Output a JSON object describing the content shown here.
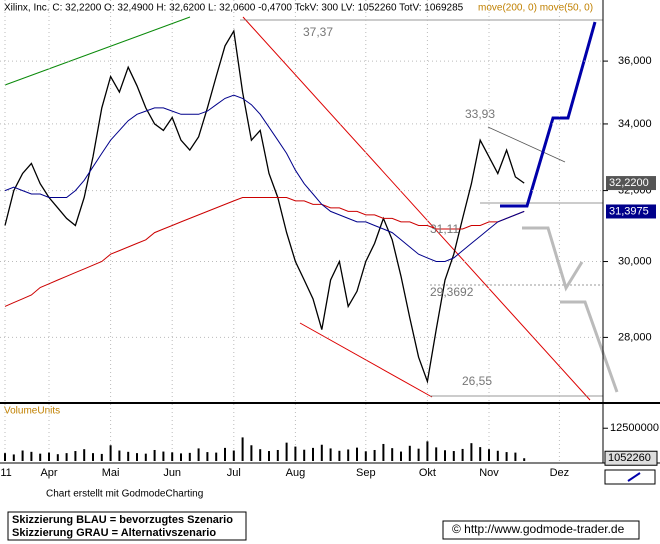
{
  "chart_data": [
    {
      "type": "line",
      "title": "Xilinx, Inc. C: 32,2200 O: 32,4900 H: 32,6200 L: 32,0600 -0,4700 TckV: 300 LV: 1052260 TotV: 1069285",
      "legend_text": "move(200, 0)  move(50, 0)",
      "log_scale": true,
      "grid": true,
      "ylim": [
        26.45,
        37.85
      ],
      "yticks": [
        {
          "value": 28,
          "label": "28,000"
        },
        {
          "value": 30,
          "label": "30,000"
        },
        {
          "value": 32,
          "label": "32,000"
        },
        {
          "value": 34,
          "label": "34,000"
        },
        {
          "value": 36,
          "label": "36,000"
        }
      ],
      "series": [
        {
          "name": "Xilinx",
          "color": "#000000",
          "values": [
            31.0,
            32.0,
            32.5,
            32.8,
            32.2,
            31.8,
            31.5,
            31.2,
            31.0,
            31.8,
            33.0,
            34.5,
            35.5,
            35.0,
            35.8,
            35.2,
            34.5,
            34.0,
            33.8,
            34.2,
            33.5,
            33.2,
            33.6,
            34.5,
            35.5,
            36.5,
            37.0,
            35.0,
            33.5,
            33.8,
            32.5,
            31.8,
            30.8,
            30.0,
            29.5,
            29.0,
            28.2,
            29.5,
            30.0,
            28.8,
            29.2,
            30.0,
            30.5,
            31.2,
            30.6,
            29.6,
            28.5,
            27.5,
            26.9,
            28.2,
            29.5,
            30.2,
            31.2,
            32.2,
            33.5,
            33.0,
            32.5,
            33.2,
            32.4,
            32.22,
            null,
            null,
            null,
            null,
            null,
            null,
            null,
            null
          ]
        },
        {
          "name": "move(200, 0)",
          "color": "#cc0000",
          "values": [
            28.8,
            28.9,
            29.0,
            29.1,
            29.3,
            29.4,
            29.5,
            29.6,
            29.7,
            29.8,
            29.9,
            30.0,
            30.2,
            30.3,
            30.4,
            30.5,
            30.6,
            30.8,
            30.9,
            31.0,
            31.1,
            31.2,
            31.3,
            31.4,
            31.5,
            31.6,
            31.7,
            31.8,
            31.8,
            31.8,
            31.8,
            31.8,
            31.8,
            31.7,
            31.7,
            31.6,
            31.6,
            31.5,
            31.5,
            31.4,
            31.4,
            31.3,
            31.3,
            31.2,
            31.2,
            31.1,
            31.1,
            31.0,
            31.0,
            30.9,
            30.9,
            30.9,
            30.9,
            31.0,
            31.0,
            31.1,
            31.1,
            31.2,
            31.3,
            31.4,
            null,
            null,
            null,
            null,
            null,
            null,
            null,
            null
          ]
        },
        {
          "name": "move(50, 0)",
          "color": "#00008b",
          "values": [
            32.0,
            32.1,
            32.0,
            31.9,
            31.9,
            31.8,
            31.8,
            31.8,
            32.0,
            32.3,
            32.7,
            33.1,
            33.5,
            33.8,
            34.1,
            34.3,
            34.4,
            34.5,
            34.5,
            34.4,
            34.3,
            34.3,
            34.3,
            34.4,
            34.6,
            34.8,
            34.9,
            34.8,
            34.6,
            34.3,
            33.9,
            33.5,
            33.1,
            32.6,
            32.2,
            31.9,
            31.6,
            31.4,
            31.3,
            31.2,
            31.1,
            31.1,
            31.0,
            30.9,
            30.8,
            30.6,
            30.4,
            30.2,
            30.1,
            30.0,
            30.0,
            30.1,
            30.3,
            30.5,
            30.7,
            30.9,
            31.1,
            31.2,
            31.3,
            31.4,
            null,
            null,
            null,
            null,
            null,
            null,
            null,
            null
          ]
        }
      ],
      "last_labels": [
        {
          "value": 32.22,
          "label": "32,2200"
        },
        {
          "value": 31.3975,
          "label": "31,3975"
        }
      ],
      "annotations": [
        "37,37",
        "33,93",
        "31,11",
        "29,3692",
        "26,55"
      ]
    },
    {
      "type": "bar",
      "title": "VolumeUnits",
      "color": "#000000",
      "categories": [
        "'11",
        null,
        null,
        null,
        null,
        "Apr",
        null,
        null,
        null,
        null,
        null,
        null,
        "Mai",
        null,
        null,
        null,
        null,
        null,
        null,
        "Jun",
        null,
        null,
        null,
        null,
        null,
        null,
        "Jul",
        null,
        null,
        null,
        null,
        null,
        null,
        "Aug",
        null,
        null,
        null,
        null,
        null,
        null,
        null,
        "Sep",
        null,
        null,
        null,
        null,
        null,
        null,
        "Okt",
        null,
        null,
        null,
        null,
        null,
        null,
        "Nov",
        null,
        null,
        null,
        null,
        null,
        null,
        null,
        "Dez",
        null,
        null,
        null,
        null
      ],
      "values": [
        3000000,
        2500000,
        4000000,
        3500000,
        2800000,
        3200000,
        2600000,
        3000000,
        3800000,
        4500000,
        3000000,
        2700000,
        6000000,
        4000000,
        3500000,
        3000000,
        2800000,
        4200000,
        3600000,
        3300000,
        2900000,
        3100000,
        4800000,
        3400000,
        3200000,
        5000000,
        4000000,
        9000000,
        6000000,
        4500000,
        3800000,
        4200000,
        7000000,
        5500000,
        4300000,
        5000000,
        6200000,
        4800000,
        3900000,
        4400000,
        5100000,
        3700000,
        4200000,
        6500000,
        4900000,
        3600000,
        5800000,
        4700000,
        7500000,
        5200000,
        4100000,
        3800000,
        4600000,
        6800000,
        5300000,
        4500000,
        3900000,
        3400000,
        3200000,
        1052260,
        null,
        null,
        null,
        null,
        null,
        null,
        null,
        null
      ],
      "ylim": [
        0,
        16400000
      ],
      "yticks": [
        12500000
      ],
      "last_value": 1052260
    },
    {
      "footer": "Chart erstellt mit GodmodeCharting",
      "notes": [
        "Skizzierung BLAU = bevorzugtes Szenario",
        "Skizzierung GRAU = Alternativszenario"
      ],
      "source": "© http://www.godmode-trader.de"
    }
  ]
}
